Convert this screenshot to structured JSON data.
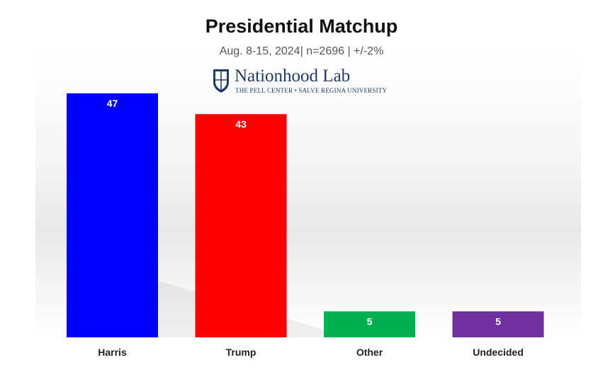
{
  "chart_data": {
    "type": "bar",
    "title": "Presidential Matchup",
    "subtitle": "Aug. 8-15, 2024| n=2696 | +/-2%",
    "categories": [
      "Harris",
      "Trump",
      "Other",
      "Undecided"
    ],
    "values": [
      47,
      43,
      5,
      5
    ],
    "colors": [
      "#0000ff",
      "#ff0000",
      "#00b050",
      "#7030a0"
    ],
    "ylim": [
      0,
      47
    ],
    "grid": false,
    "xlabel": "",
    "ylabel": ""
  },
  "logo": {
    "name": "Nationhood Lab",
    "sub": "THE PELL CENTER • SALVE REGINA UNIVERSITY",
    "icon": "shield-icon"
  }
}
